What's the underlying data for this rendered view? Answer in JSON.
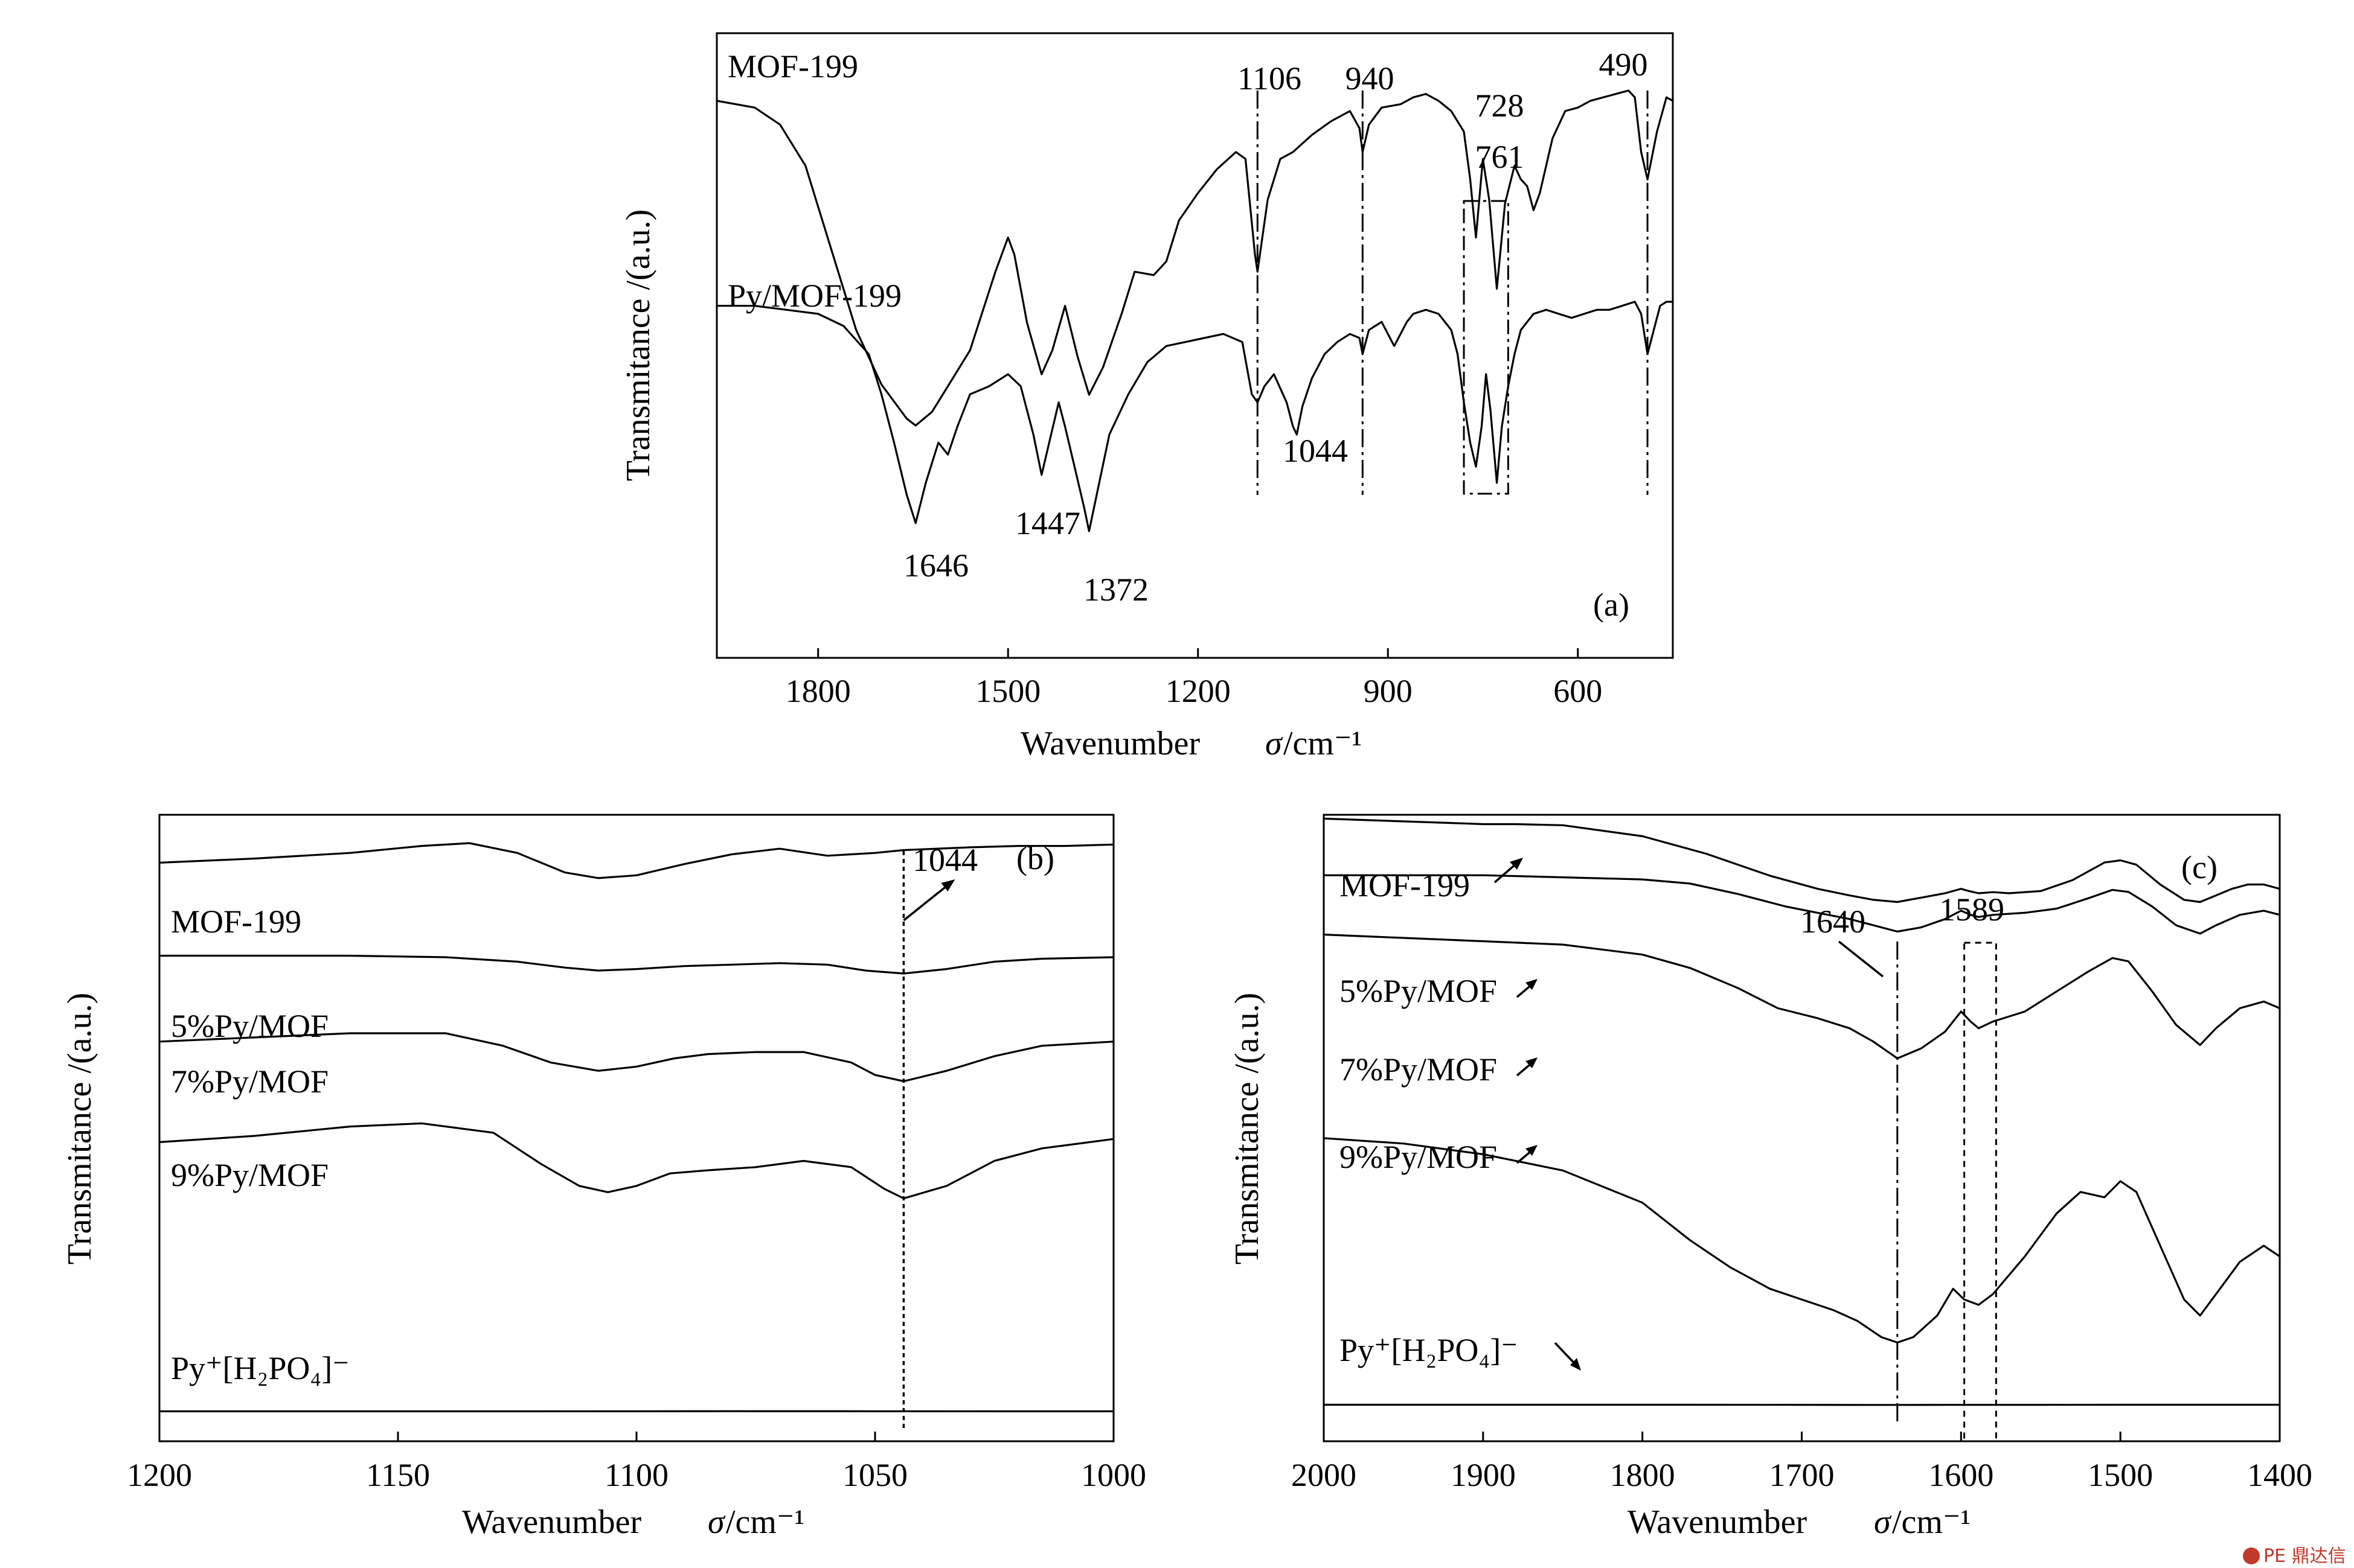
{
  "figure": {
    "watermark": "PE 鼎达信"
  },
  "chart_data": [
    {
      "panel": "(a)",
      "type": "line",
      "xlabel": "Wavenumber",
      "xlabel_symbol": "σ",
      "xlabel_unit": "/cm⁻¹",
      "ylabel": "Transmitance /(a.u.)",
      "xlim": [
        1960,
        450
      ],
      "x_reversed": true,
      "xticks": [
        1800,
        1500,
        1200,
        900,
        600
      ],
      "grid": false,
      "series": [
        {
          "name": "MOF-199",
          "x": [
            1960,
            1900,
            1860,
            1820,
            1780,
            1740,
            1700,
            1660,
            1646,
            1620,
            1600,
            1560,
            1520,
            1500,
            1490,
            1470,
            1447,
            1430,
            1410,
            1390,
            1372,
            1350,
            1320,
            1300,
            1270,
            1250,
            1230,
            1200,
            1170,
            1140,
            1125,
            1110,
            1106,
            1090,
            1070,
            1050,
            1020,
            990,
            960,
            945,
            940,
            930,
            910,
            880,
            860,
            840,
            820,
            800,
            780,
            770,
            761,
            750,
            740,
            728,
            715,
            700,
            690,
            680,
            670,
            660,
            640,
            620,
            600,
            580,
            560,
            540,
            520,
            510,
            500,
            490,
            475,
            460,
            450
          ],
          "values": [
            0.95,
            0.93,
            0.88,
            0.76,
            0.52,
            0.28,
            0.12,
            0.02,
            0.0,
            0.04,
            0.1,
            0.22,
            0.45,
            0.55,
            0.5,
            0.3,
            0.15,
            0.22,
            0.35,
            0.2,
            0.09,
            0.17,
            0.33,
            0.45,
            0.44,
            0.48,
            0.6,
            0.68,
            0.75,
            0.8,
            0.78,
            0.5,
            0.45,
            0.66,
            0.78,
            0.8,
            0.85,
            0.89,
            0.92,
            0.87,
            0.8,
            0.88,
            0.93,
            0.94,
            0.96,
            0.97,
            0.95,
            0.92,
            0.86,
            0.72,
            0.55,
            0.78,
            0.66,
            0.4,
            0.65,
            0.76,
            0.72,
            0.7,
            0.63,
            0.68,
            0.84,
            0.92,
            0.93,
            0.95,
            0.96,
            0.97,
            0.98,
            0.96,
            0.8,
            0.72,
            0.86,
            0.96,
            0.95
          ]
        },
        {
          "name": "Py/MOF-199",
          "x": [
            1960,
            1900,
            1850,
            1800,
            1760,
            1720,
            1700,
            1680,
            1660,
            1646,
            1630,
            1610,
            1595,
            1580,
            1560,
            1530,
            1500,
            1480,
            1460,
            1447,
            1435,
            1420,
            1410,
            1395,
            1380,
            1372,
            1360,
            1340,
            1310,
            1280,
            1250,
            1220,
            1190,
            1160,
            1130,
            1115,
            1106,
            1095,
            1080,
            1060,
            1050,
            1044,
            1035,
            1020,
            1000,
            980,
            960,
            945,
            940,
            930,
            910,
            900,
            890,
            880,
            870,
            860,
            840,
            820,
            800,
            790,
            780,
            770,
            761,
            752,
            745,
            738,
            728,
            720,
            710,
            700,
            690,
            670,
            650,
            630,
            610,
            590,
            570,
            550,
            530,
            510,
            500,
            490,
            480,
            470,
            460,
            450
          ],
          "values": [
            0.92,
            0.92,
            0.91,
            0.9,
            0.87,
            0.8,
            0.7,
            0.58,
            0.45,
            0.38,
            0.48,
            0.58,
            0.55,
            0.62,
            0.7,
            0.72,
            0.75,
            0.72,
            0.6,
            0.5,
            0.58,
            0.68,
            0.62,
            0.52,
            0.42,
            0.36,
            0.45,
            0.6,
            0.7,
            0.78,
            0.82,
            0.83,
            0.84,
            0.85,
            0.83,
            0.7,
            0.68,
            0.72,
            0.75,
            0.68,
            0.62,
            0.6,
            0.67,
            0.74,
            0.8,
            0.83,
            0.85,
            0.84,
            0.8,
            0.86,
            0.88,
            0.85,
            0.82,
            0.85,
            0.88,
            0.9,
            0.91,
            0.9,
            0.86,
            0.8,
            0.68,
            0.58,
            0.52,
            0.62,
            0.75,
            0.66,
            0.48,
            0.62,
            0.72,
            0.8,
            0.86,
            0.9,
            0.91,
            0.9,
            0.89,
            0.9,
            0.91,
            0.91,
            0.92,
            0.93,
            0.9,
            0.8,
            0.86,
            0.92,
            0.93,
            0.93
          ]
        }
      ],
      "peak_labels": [
        "1106",
        "940",
        "728",
        "761",
        "490",
        "1044",
        "1646",
        "1447",
        "1372"
      ],
      "marked_wavenumbers": [
        1106,
        940,
        490
      ],
      "box_region": [
        780,
        710
      ]
    },
    {
      "panel": "(b)",
      "type": "line",
      "xlabel": "Wavenumber",
      "xlabel_symbol": "σ",
      "xlabel_unit": "/cm⁻¹",
      "ylabel": "Transmitance /(a.u.)",
      "xlim": [
        1200,
        1000
      ],
      "x_reversed": true,
      "xticks": [
        1200,
        1150,
        1100,
        1050,
        1000
      ],
      "grid": false,
      "series": [
        {
          "name": "MOF-199",
          "x": [
            1200,
            1180,
            1160,
            1145,
            1135,
            1125,
            1115,
            1108,
            1100,
            1090,
            1080,
            1070,
            1060,
            1050,
            1044,
            1030,
            1020,
            1010,
            1000
          ],
          "values": [
            0.93,
            0.96,
            1.0,
            1.05,
            1.07,
            1.0,
            0.86,
            0.82,
            0.84,
            0.92,
            0.99,
            1.03,
            0.98,
            1.0,
            1.02,
            1.04,
            1.05,
            1.05,
            1.06
          ]
        },
        {
          "name": "5%Py/MOF",
          "x": [
            1200,
            1180,
            1160,
            1140,
            1125,
            1115,
            1108,
            1100,
            1090,
            1080,
            1070,
            1060,
            1052,
            1044,
            1035,
            1025,
            1015,
            1000
          ],
          "values": [
            0.78,
            0.78,
            0.78,
            0.77,
            0.74,
            0.7,
            0.68,
            0.69,
            0.71,
            0.72,
            0.73,
            0.72,
            0.68,
            0.66,
            0.69,
            0.74,
            0.76,
            0.77
          ]
        },
        {
          "name": "7%Py/MOF",
          "x": [
            1200,
            1180,
            1160,
            1140,
            1128,
            1118,
            1108,
            1100,
            1092,
            1085,
            1075,
            1065,
            1055,
            1050,
            1044,
            1035,
            1025,
            1015,
            1000
          ],
          "values": [
            0.62,
            0.64,
            0.66,
            0.66,
            0.6,
            0.52,
            0.48,
            0.5,
            0.54,
            0.56,
            0.57,
            0.57,
            0.52,
            0.46,
            0.43,
            0.48,
            0.55,
            0.6,
            0.62
          ]
        },
        {
          "name": "9%Py/MOF",
          "x": [
            1200,
            1180,
            1160,
            1145,
            1130,
            1120,
            1112,
            1106,
            1100,
            1093,
            1085,
            1075,
            1065,
            1055,
            1048,
            1044,
            1035,
            1025,
            1015,
            1000
          ],
          "values": [
            0.42,
            0.44,
            0.47,
            0.48,
            0.45,
            0.35,
            0.28,
            0.26,
            0.28,
            0.32,
            0.33,
            0.34,
            0.36,
            0.34,
            0.27,
            0.24,
            0.28,
            0.36,
            0.4,
            0.43
          ]
        },
        {
          "name": "Py⁺[H₂PO₄]⁻",
          "x": [
            1200,
            1150,
            1100,
            1080,
            1050,
            1000
          ],
          "values": [
            0.05,
            0.05,
            0.055,
            0.057,
            0.055,
            0.05
          ]
        }
      ],
      "peak_labels": [
        "1044"
      ],
      "marked_wavenumbers": [
        1044
      ]
    },
    {
      "panel": "(c)",
      "type": "line",
      "xlabel": "Wavenumber",
      "xlabel_symbol": "σ",
      "xlabel_unit": "/cm⁻¹",
      "ylabel": "Transmitance /(a.u.)",
      "xlim": [
        2000,
        1400
      ],
      "x_reversed": true,
      "xticks": [
        2000,
        1900,
        1800,
        1700,
        1600,
        1500,
        1400
      ],
      "grid": false,
      "series": [
        {
          "name": "MOF-199",
          "x": [
            2000,
            1960,
            1920,
            1900,
            1880,
            1850,
            1800,
            1760,
            1720,
            1690,
            1670,
            1655,
            1640,
            1625,
            1610,
            1600,
            1595,
            1589,
            1580,
            1570,
            1550,
            1530,
            1510,
            1500,
            1490,
            1475,
            1460,
            1450,
            1440,
            1430,
            1420,
            1410,
            1400
          ],
          "values": [
            1.0,
            0.99,
            0.98,
            0.975,
            0.975,
            0.97,
            0.92,
            0.84,
            0.74,
            0.68,
            0.65,
            0.63,
            0.62,
            0.64,
            0.66,
            0.68,
            0.67,
            0.66,
            0.665,
            0.66,
            0.67,
            0.72,
            0.8,
            0.81,
            0.79,
            0.7,
            0.63,
            0.62,
            0.65,
            0.68,
            0.7,
            0.7,
            0.68
          ]
        },
        {
          "name": "5%Py/MOF",
          "x": [
            2000,
            1950,
            1900,
            1850,
            1800,
            1770,
            1740,
            1710,
            1690,
            1670,
            1655,
            1640,
            1625,
            1610,
            1600,
            1594,
            1589,
            1580,
            1560,
            1540,
            1520,
            1505,
            1495,
            1480,
            1465,
            1450,
            1440,
            1425,
            1410,
            1400
          ],
          "values": [
            0.81,
            0.81,
            0.81,
            0.8,
            0.79,
            0.77,
            0.72,
            0.66,
            0.63,
            0.6,
            0.57,
            0.54,
            0.56,
            0.6,
            0.64,
            0.62,
            0.61,
            0.62,
            0.63,
            0.65,
            0.7,
            0.74,
            0.73,
            0.66,
            0.57,
            0.53,
            0.57,
            0.62,
            0.64,
            0.62
          ]
        },
        {
          "name": "7%Py/MOF",
          "x": [
            2000,
            1950,
            1900,
            1850,
            1800,
            1770,
            1740,
            1715,
            1690,
            1670,
            1655,
            1640,
            1625,
            1610,
            1600,
            1594,
            1589,
            1580,
            1560,
            1540,
            1520,
            1505,
            1495,
            1480,
            1465,
            1450,
            1440,
            1425,
            1410,
            1400
          ],
          "values": [
            0.67,
            0.66,
            0.65,
            0.64,
            0.61,
            0.57,
            0.51,
            0.45,
            0.42,
            0.39,
            0.35,
            0.3,
            0.33,
            0.38,
            0.44,
            0.41,
            0.39,
            0.41,
            0.44,
            0.5,
            0.56,
            0.6,
            0.59,
            0.5,
            0.4,
            0.34,
            0.39,
            0.45,
            0.47,
            0.45
          ]
        },
        {
          "name": "9%Py/MOF",
          "x": [
            2000,
            1950,
            1900,
            1850,
            1800,
            1770,
            1745,
            1720,
            1700,
            1680,
            1665,
            1650,
            1640,
            1630,
            1615,
            1605,
            1598,
            1589,
            1580,
            1560,
            1540,
            1525,
            1510,
            1500,
            1490,
            1475,
            1460,
            1450,
            1440,
            1425,
            1410,
            1400
          ],
          "values": [
            0.42,
            0.41,
            0.39,
            0.36,
            0.3,
            0.23,
            0.18,
            0.14,
            0.12,
            0.1,
            0.08,
            0.05,
            0.04,
            0.05,
            0.09,
            0.14,
            0.12,
            0.11,
            0.13,
            0.2,
            0.28,
            0.32,
            0.31,
            0.34,
            0.32,
            0.22,
            0.12,
            0.09,
            0.13,
            0.19,
            0.22,
            0.2
          ]
        },
        {
          "name": "Py⁺[H₂PO₄]⁻",
          "x": [
            2000,
            1900,
            1800,
            1700,
            1660,
            1640,
            1610,
            1580,
            1550,
            1500,
            1450,
            1400
          ],
          "values": [
            0.03,
            0.03,
            0.03,
            0.022,
            0.012,
            0.01,
            0.018,
            0.022,
            0.026,
            0.03,
            0.032,
            0.032
          ]
        }
      ],
      "peak_labels": [
        "1640",
        "1589"
      ],
      "marked_wavenumbers": [
        1640
      ],
      "box_region": [
        1598,
        1578
      ]
    }
  ]
}
